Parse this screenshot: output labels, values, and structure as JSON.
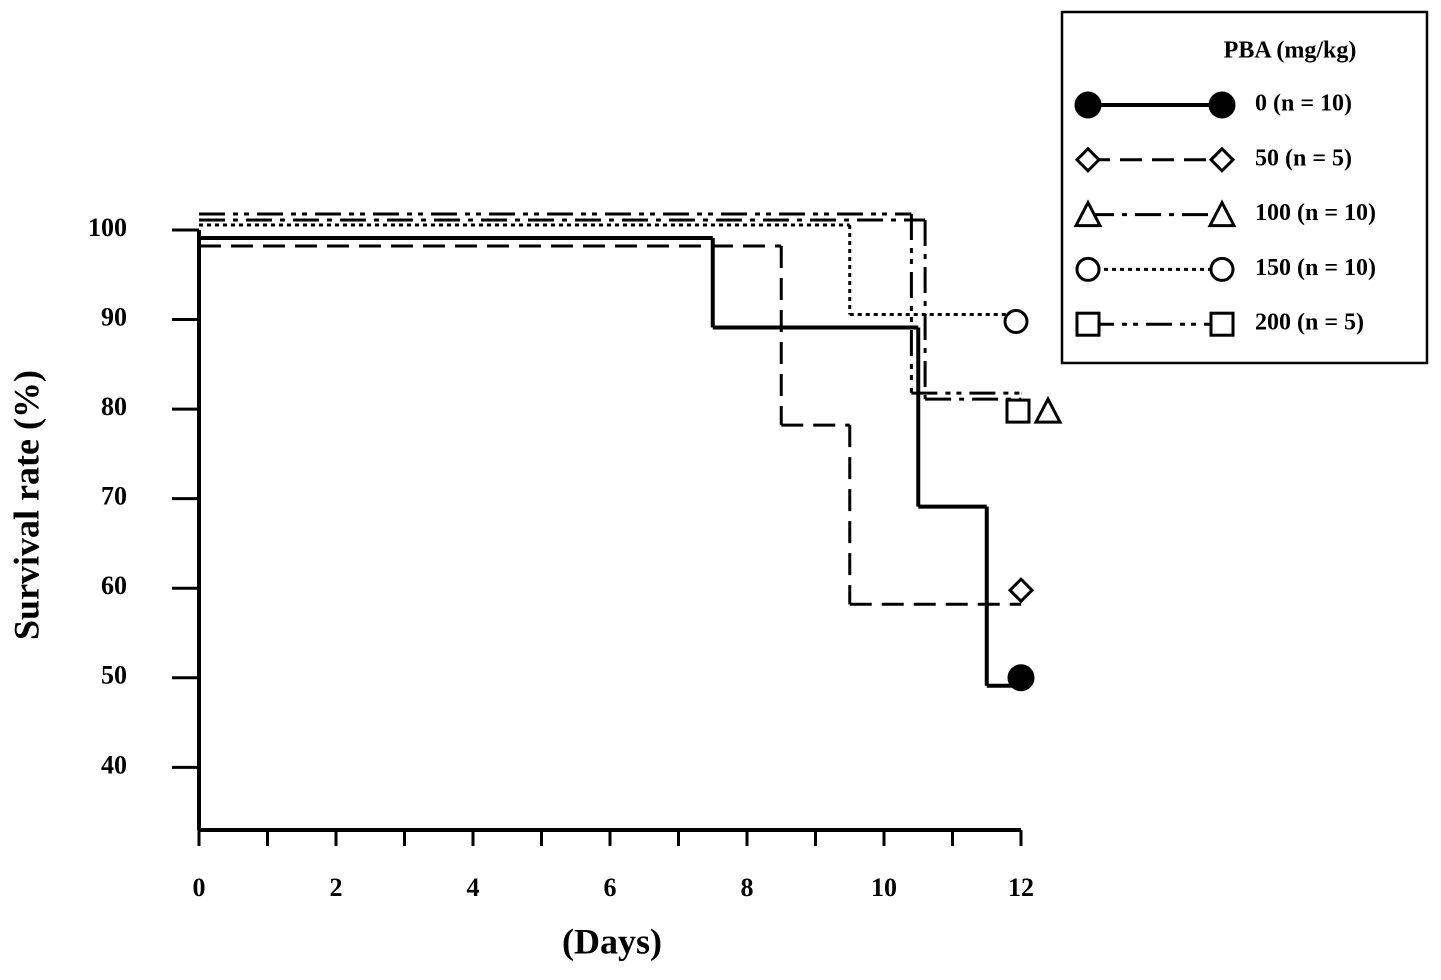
{
  "chart_data": {
    "type": "step",
    "xlabel": "(Days)",
    "ylabel": "Survival rate (%)",
    "xlim": [
      0,
      12
    ],
    "xticks": [
      0,
      2,
      4,
      6,
      8,
      10,
      12
    ],
    "xminorticks": [
      1,
      3,
      5,
      7,
      9,
      11
    ],
    "ylim": [
      33,
      100
    ],
    "yticks": [
      40,
      50,
      60,
      70,
      80,
      90,
      100
    ],
    "legend_title": "PBA (mg/kg)",
    "legend_position": "upper right",
    "series": [
      {
        "name": "0 (n = 10)",
        "color": "#000000",
        "marker": "filled-circle",
        "linestyle": "solid",
        "x": [
          0,
          7.5,
          10.5,
          11.5,
          12
        ],
        "values": [
          100,
          90,
          70,
          50,
          50
        ]
      },
      {
        "name": "50 (n = 5)",
        "color": "#000000",
        "marker": "diamond",
        "linestyle": "dashed",
        "x": [
          0,
          8.5,
          9.5,
          12
        ],
        "values": [
          100,
          80,
          60,
          60
        ]
      },
      {
        "name": "100 (n = 10)",
        "color": "#000000",
        "marker": "triangle",
        "linestyle": "dash-dot",
        "x": [
          0,
          10.6,
          12
        ],
        "values": [
          100,
          80,
          80
        ]
      },
      {
        "name": "150 (n = 10)",
        "color": "#000000",
        "marker": "circle",
        "linestyle": "dotted",
        "x": [
          0,
          9.5,
          12
        ],
        "values": [
          100,
          90,
          90
        ]
      },
      {
        "name": "200 (n = 5)",
        "color": "#000000",
        "marker": "square",
        "linestyle": "dash-dot-dot",
        "x": [
          0,
          10.4,
          12
        ],
        "values": [
          100,
          80,
          80
        ]
      }
    ]
  }
}
